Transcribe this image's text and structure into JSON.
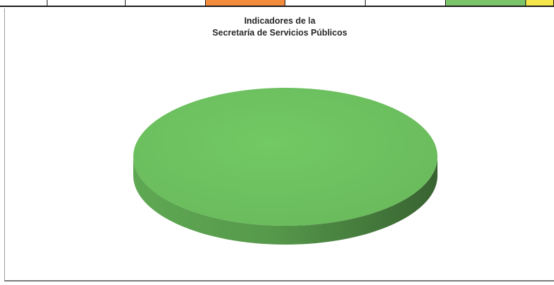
{
  "top_row": {
    "cell_colors": [
      "#ffffff",
      "#ffffff",
      "#ffffff",
      "#f28b3c",
      "#ffffff",
      "#ffffff",
      "#7cc46a",
      "#f5e64a"
    ]
  },
  "chart_data": {
    "type": "pie",
    "style": "3d",
    "title_lines": [
      "Indicadores  de la",
      "Secretaría de Servicios Públicos"
    ],
    "slices": [
      {
        "value": 100,
        "color": "#6cbf5e"
      }
    ],
    "legend": "none"
  }
}
